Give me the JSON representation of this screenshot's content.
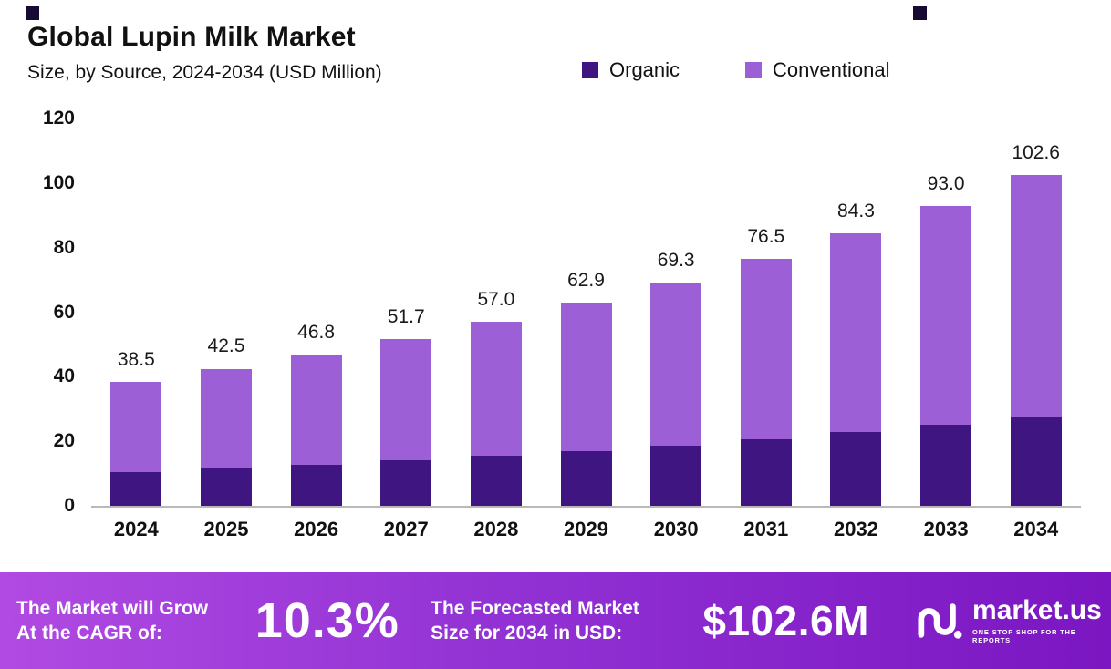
{
  "header": {
    "title": "Global Lupin Milk Market",
    "subtitle": "Size, by Source, 2024-2034 (USD Million)"
  },
  "legend": {
    "items": [
      {
        "label": "Organic",
        "color": "#3f1582"
      },
      {
        "label": "Conventional",
        "color": "#9c5fd6"
      }
    ]
  },
  "chart_data": {
    "type": "bar",
    "stacked": true,
    "title": "Global Lupin Milk Market Size, by Source, 2024-2034 (USD Million)",
    "categories": [
      "2024",
      "2025",
      "2026",
      "2027",
      "2028",
      "2029",
      "2030",
      "2031",
      "2032",
      "2033",
      "2034"
    ],
    "series": [
      {
        "name": "Organic",
        "color": "#3f1582",
        "values": [
          10.4,
          11.5,
          12.7,
          14.0,
          15.4,
          17.0,
          18.7,
          20.6,
          22.8,
          25.1,
          27.7
        ]
      },
      {
        "name": "Conventional",
        "color": "#9c5fd6",
        "values": [
          28.1,
          31.0,
          34.1,
          37.7,
          41.6,
          45.9,
          50.6,
          55.9,
          61.5,
          67.9,
          74.9
        ]
      }
    ],
    "totals": [
      38.5,
      42.5,
      46.8,
      51.7,
      57.0,
      62.9,
      69.3,
      76.5,
      84.3,
      93.0,
      102.6
    ],
    "xlabel": "",
    "ylabel": "",
    "ylim": [
      0,
      120
    ],
    "yticks": [
      0,
      20,
      40,
      60,
      80,
      100,
      120
    ],
    "grid": false,
    "legend_position": "top"
  },
  "footer": {
    "left_line1": "The Market will Grow",
    "left_line2": "At the CAGR of:",
    "cagr": "10.3%",
    "mid_line1": "The Forecasted Market",
    "mid_line2": "Size for 2034 in USD:",
    "forecast": "$102.6M",
    "brand": "market.us",
    "tagline": "ONE STOP SHOP FOR THE REPORTS"
  }
}
